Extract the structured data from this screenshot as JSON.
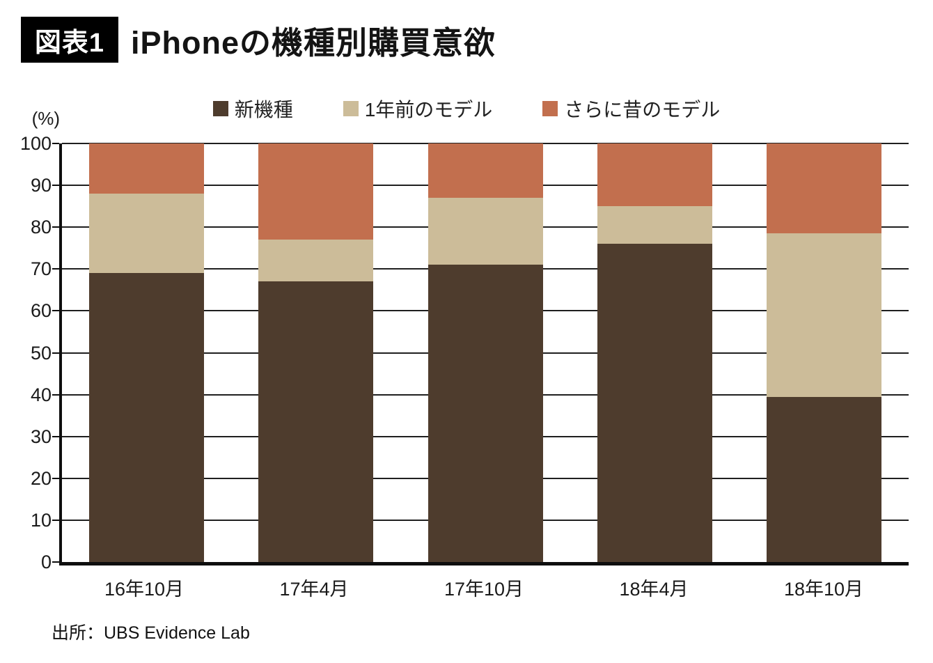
{
  "header": {
    "badge": "図表1",
    "title": "iPhoneの機種別購買意欲"
  },
  "chart_data": {
    "type": "bar",
    "stacked": true,
    "title": "iPhoneの機種別購買意欲",
    "categories": [
      "16年10月",
      "17年4月",
      "17年10月",
      "18年4月",
      "18年10月"
    ],
    "series": [
      {
        "name": "新機種",
        "color": "#4e3c2d",
        "values": [
          69,
          67,
          71,
          76,
          39.5
        ]
      },
      {
        "name": "1年前のモデル",
        "color": "#ccbc99",
        "values": [
          19,
          10,
          16,
          9,
          39
        ]
      },
      {
        "name": "さらに昔のモデル",
        "color": "#c26f4e",
        "values": [
          12,
          23,
          13,
          15,
          21.5
        ]
      }
    ],
    "ylabel": "(%)",
    "ylim": [
      0,
      100
    ],
    "yticks": [
      0,
      10,
      20,
      30,
      40,
      50,
      60,
      70,
      80,
      90,
      100
    ],
    "grid": true,
    "legend_position": "top"
  },
  "source": "出所：UBS Evidence Lab"
}
